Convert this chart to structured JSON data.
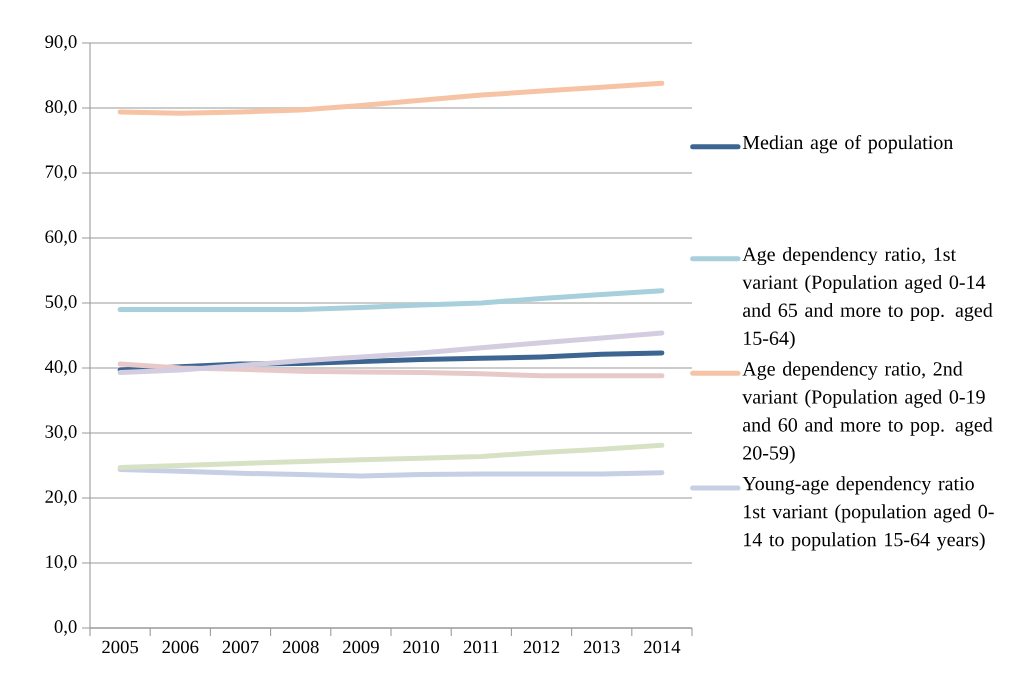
{
  "chart_data": {
    "type": "line",
    "categories": [
      "2005",
      "2006",
      "2007",
      "2008",
      "2009",
      "2010",
      "2011",
      "2012",
      "2013",
      "2014"
    ],
    "ylim": [
      0,
      90
    ],
    "yticks": [
      {
        "value": 0,
        "label": "0,0"
      },
      {
        "value": 10,
        "label": "10,0"
      },
      {
        "value": 20,
        "label": "20,0"
      },
      {
        "value": 30,
        "label": "30,0"
      },
      {
        "value": 40,
        "label": "40,0"
      },
      {
        "value": 50,
        "label": "50,0"
      },
      {
        "value": 60,
        "label": "60,0"
      },
      {
        "value": 70,
        "label": "70,0"
      },
      {
        "value": 80,
        "label": "80,0"
      },
      {
        "value": 90,
        "label": "90,0"
      }
    ],
    "grid": "y",
    "legend": "right",
    "marker": "none",
    "line_style": "solid",
    "series": [
      {
        "name": "Median age of population",
        "color": "#3d6591",
        "values": [
          39.7,
          40.2,
          40.6,
          40.7,
          41.0,
          41.3,
          41.5,
          41.7,
          42.1,
          42.3
        ]
      },
      {
        "name": "Age dependency ratio, 1st variant (Population aged 0-14 and 65 and more to pop. aged 15-64)",
        "color": "#a8cfdc",
        "values": [
          49.0,
          49.0,
          49.0,
          49.0,
          49.3,
          49.7,
          50.0,
          50.7,
          51.3,
          51.9
        ]
      },
      {
        "name": "Age dependency ratio, 2nd variant (Population aged 0-19 and 60 and more to pop. aged 20-59)",
        "color": "#f6c4a5",
        "values": [
          79.4,
          79.2,
          79.4,
          79.7,
          80.4,
          81.2,
          82.0,
          82.6,
          83.2,
          83.8
        ]
      },
      {
        "name": "Young-age dependency ratio 1st variant (population aged 0-14 to population 15-64 years)",
        "color": "#c6cfe3",
        "values": [
          24.4,
          24.1,
          23.8,
          23.6,
          23.4,
          23.6,
          23.7,
          23.7,
          23.7,
          23.9
        ]
      },
      {
        "color": "#e8c9c9",
        "values": [
          40.6,
          40.0,
          39.8,
          39.5,
          39.4,
          39.3,
          39.1,
          38.8,
          38.8,
          38.8
        ]
      },
      {
        "color": "#d4cde0",
        "values": [
          39.3,
          39.7,
          40.4,
          41.1,
          41.7,
          42.3,
          43.1,
          43.9,
          44.6,
          45.4
        ]
      },
      {
        "color": "#d7e2c5",
        "values": [
          24.7,
          25.0,
          25.3,
          25.6,
          25.9,
          26.1,
          26.4,
          27.0,
          27.5,
          28.1
        ]
      }
    ]
  }
}
